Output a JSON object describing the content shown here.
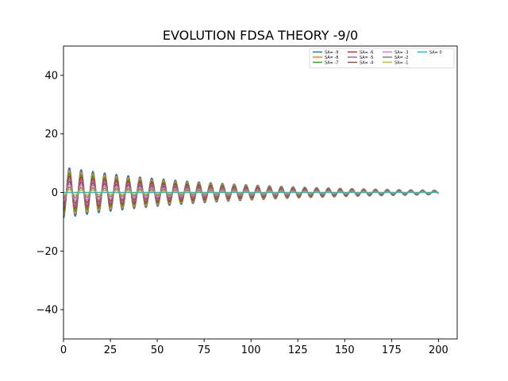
{
  "chart_data": {
    "type": "line",
    "title": "EVOLUTION FDSA THEORY -9/0",
    "xlabel": "",
    "ylabel": "",
    "xlim": [
      0,
      210
    ],
    "ylim": [
      -50,
      50
    ],
    "xticks": [
      0,
      25,
      50,
      75,
      100,
      125,
      150,
      175,
      200
    ],
    "yticks": [
      -40,
      -20,
      0,
      20,
      40
    ],
    "grid": false,
    "legend_placement": "top-right",
    "legend_columns": 4,
    "x_range": [
      0,
      200
    ],
    "period": 6.28,
    "series": [
      {
        "name": "SA= -9",
        "color": "#1f77b4",
        "initial_amplitude": 8.7,
        "final_amplitude": 0.75
      },
      {
        "name": "SA= -8",
        "color": "#ff7f0e",
        "initial_amplitude": 7.7,
        "final_amplitude": 0.67
      },
      {
        "name": "SA= -7",
        "color": "#2ca02c",
        "initial_amplitude": 6.8,
        "final_amplitude": 0.58
      },
      {
        "name": "SA= -6",
        "color": "#d62728",
        "initial_amplitude": 5.8,
        "final_amplitude": 0.5
      },
      {
        "name": "SA= -5",
        "color": "#9467bd",
        "initial_amplitude": 4.8,
        "final_amplitude": 0.42
      },
      {
        "name": "SA= -4",
        "color": "#8c564b",
        "initial_amplitude": 3.9,
        "final_amplitude": 0.33
      },
      {
        "name": "SA= -3",
        "color": "#e377c2",
        "initial_amplitude": 2.9,
        "final_amplitude": 0.25
      },
      {
        "name": "SA= -2",
        "color": "#7f7f7f",
        "initial_amplitude": 1.9,
        "final_amplitude": 0.17
      },
      {
        "name": "SA= -1",
        "color": "#bcbd22",
        "initial_amplitude": 1.0,
        "final_amplitude": 0.08
      },
      {
        "name": "SA= 0",
        "color": "#17becf",
        "initial_amplitude": 0.0,
        "final_amplitude": 0.0
      }
    ]
  }
}
